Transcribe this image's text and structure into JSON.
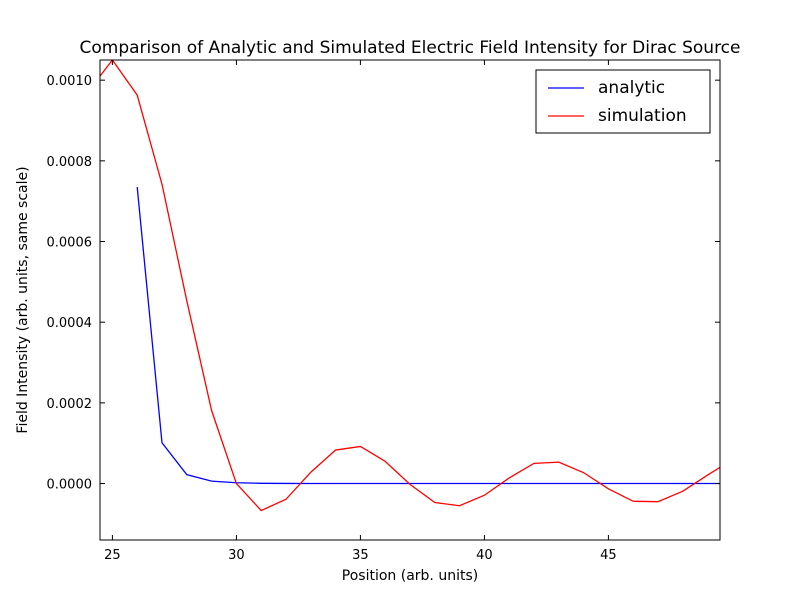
{
  "chart_data": {
    "type": "line",
    "title": "Comparison of Analytic and Simulated Electric Field Intensity for Dirac Source",
    "xlabel": "Position (arb. units)",
    "ylabel": "Field Intensity (arb. units, same scale)",
    "xlim": [
      24.5,
      49.5
    ],
    "ylim": [
      -0.00014,
      0.00105
    ],
    "xticks": [
      25,
      30,
      35,
      40,
      45
    ],
    "xtick_labels": [
      "25",
      "30",
      "35",
      "40",
      "45"
    ],
    "yticks": [
      0.0,
      0.0002,
      0.0004,
      0.0006,
      0.0008,
      0.001
    ],
    "ytick_labels": [
      "0.0000",
      "0.0002",
      "0.0004",
      "0.0006",
      "0.0008",
      "0.0010"
    ],
    "grid": false,
    "legend": "top-right",
    "series": [
      {
        "name": "analytic",
        "color": "#0000ff",
        "x": [
          26,
          27,
          28,
          29,
          30,
          31,
          32,
          33,
          34,
          35,
          36,
          37,
          38,
          39,
          40,
          41,
          42,
          43,
          44,
          45,
          46,
          47,
          48,
          49,
          49.5
        ],
        "y": [
          0.000735,
          0.000101,
          2.2e-05,
          6e-06,
          2e-06,
          6e-07,
          2e-07,
          0.0,
          0.0,
          0.0,
          0.0,
          0.0,
          0.0,
          0.0,
          0.0,
          0.0,
          0.0,
          0.0,
          0.0,
          0.0,
          0.0,
          0.0,
          0.0,
          0.0,
          0.0
        ]
      },
      {
        "name": "simulation",
        "color": "#ff0000",
        "x": [
          24.5,
          25,
          26,
          27,
          28,
          29,
          30,
          31,
          32,
          33,
          34,
          35,
          36,
          37,
          38,
          39,
          40,
          41,
          42,
          43,
          44,
          45,
          46,
          47,
          48,
          49,
          49.5
        ],
        "y": [
          0.00101,
          0.00105,
          0.000963,
          0.000742,
          0.000453,
          0.000181,
          0.0,
          -6.7e-05,
          -3.9e-05,
          2.8e-05,
          8.3e-05,
          9.2e-05,
          5.5e-05,
          -2e-06,
          -4.7e-05,
          -5.5e-05,
          -2.9e-05,
          1.4e-05,
          5e-05,
          5.3e-05,
          2.7e-05,
          -1.3e-05,
          -4.4e-05,
          -4.5e-05,
          -1.9e-05,
          2.1e-05,
          4e-05
        ]
      }
    ]
  }
}
